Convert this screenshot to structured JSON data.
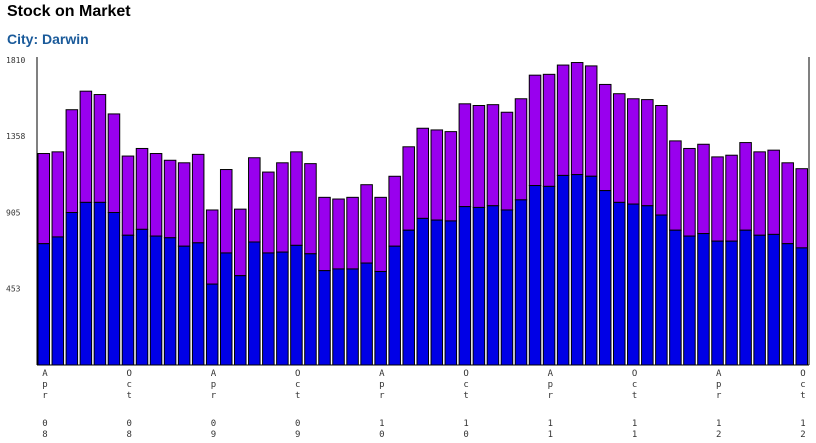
{
  "header": {
    "title": "Stock on Market",
    "subtitle": "City: Darwin"
  },
  "chart_data": {
    "type": "bar",
    "stacked": true,
    "ylim": [
      0,
      1810
    ],
    "yticks": [
      453,
      905,
      1358,
      1810
    ],
    "xticks": [
      {
        "index": 0,
        "month": "Apr",
        "year": "08"
      },
      {
        "index": 6,
        "month": "Oct",
        "year": "08"
      },
      {
        "index": 12,
        "month": "Apr",
        "year": "09"
      },
      {
        "index": 18,
        "month": "Oct",
        "year": "09"
      },
      {
        "index": 24,
        "month": "Apr",
        "year": "10"
      },
      {
        "index": 30,
        "month": "Oct",
        "year": "10"
      },
      {
        "index": 36,
        "month": "Apr",
        "year": "11"
      },
      {
        "index": 42,
        "month": "Oct",
        "year": "11"
      },
      {
        "index": 48,
        "month": "Apr",
        "year": "12"
      },
      {
        "index": 54,
        "month": "Oct",
        "year": "12"
      }
    ],
    "series": [
      {
        "color": "#0000e6",
        "values": [
          720,
          760,
          905,
          965,
          965,
          905,
          770,
          805,
          765,
          755,
          705,
          725,
          480,
          665,
          530,
          730,
          665,
          670,
          710,
          660,
          560,
          570,
          570,
          605,
          555,
          705,
          800,
          870,
          860,
          855,
          940,
          935,
          945,
          920,
          980,
          1065,
          1060,
          1125,
          1130,
          1120,
          1035,
          965,
          955,
          945,
          890,
          800,
          765,
          780,
          735,
          735,
          800,
          770,
          775,
          720,
          695
        ],
        "totals": [
          1255,
          1265,
          1515,
          1625,
          1605,
          1490,
          1240,
          1285,
          1255,
          1215,
          1200,
          1250,
          920,
          1160,
          925,
          1230,
          1145,
          1200,
          1265,
          1195,
          995,
          985,
          995,
          1070,
          995,
          1120,
          1295,
          1405,
          1395,
          1385,
          1550,
          1540,
          1545,
          1500,
          1580,
          1720,
          1725,
          1780,
          1795,
          1775,
          1665,
          1610,
          1580,
          1575,
          1540,
          1330,
          1285,
          1310,
          1235,
          1245,
          1320,
          1265,
          1275,
          1200,
          1165
        ]
      }
    ],
    "bar_top_color": "#9900ee",
    "grid": false
  }
}
